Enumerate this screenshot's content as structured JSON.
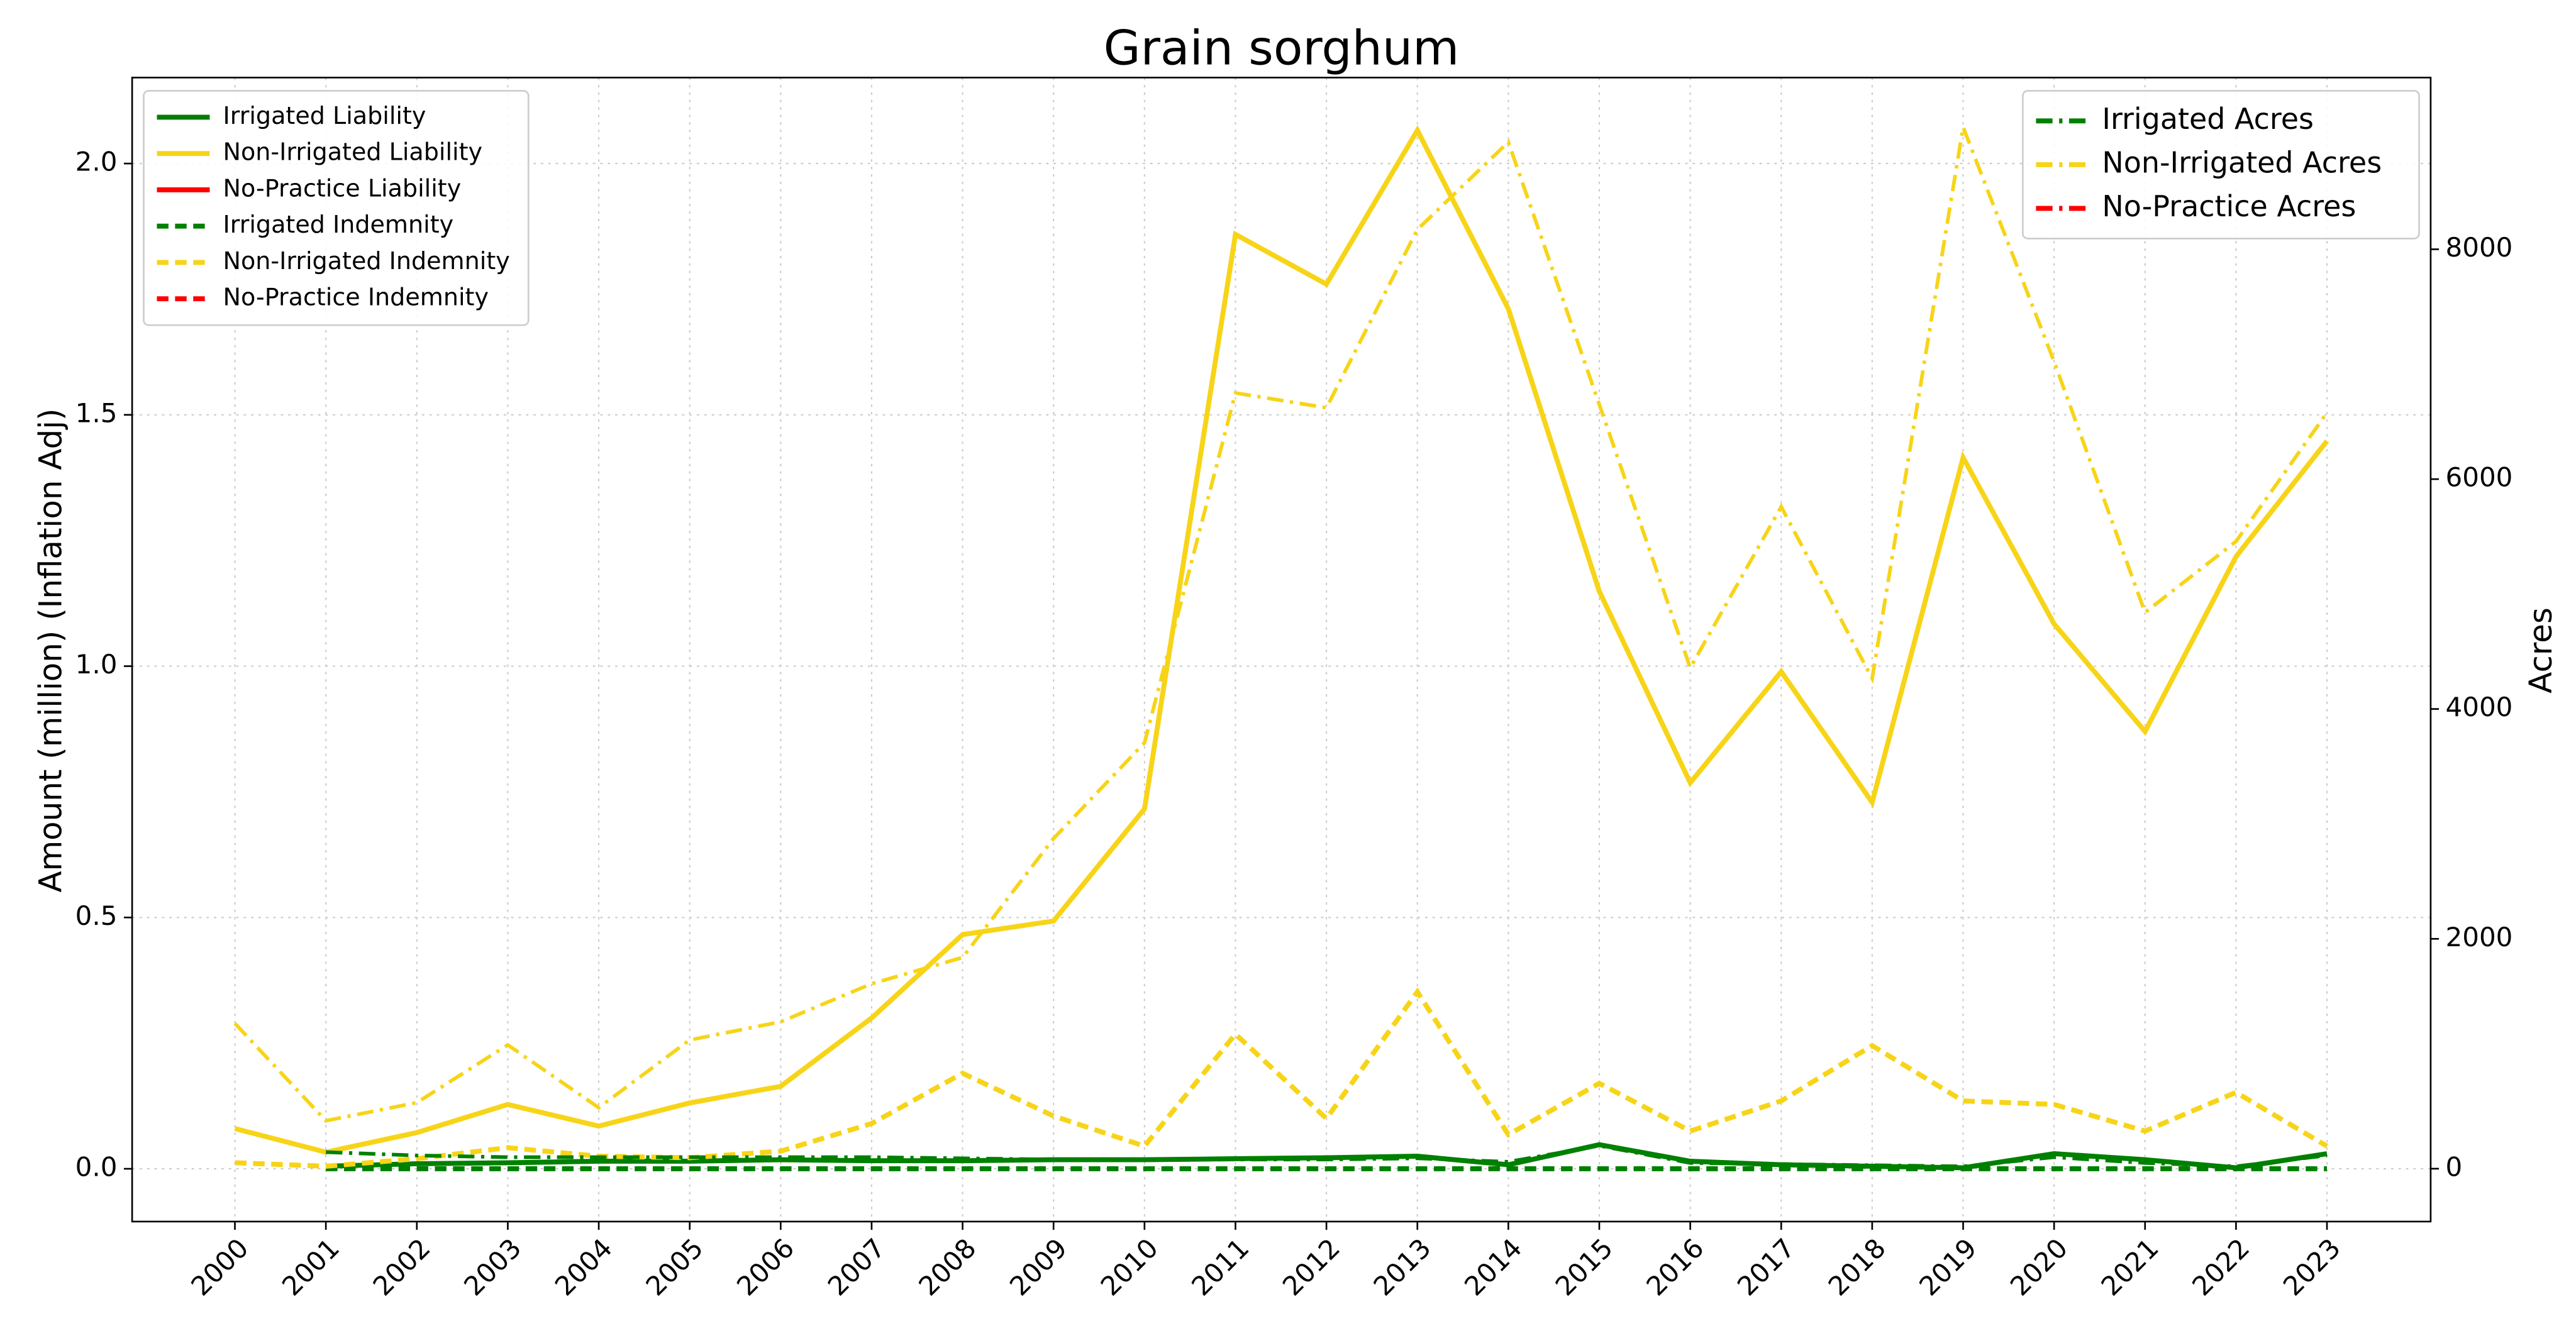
{
  "chart_data": {
    "type": "line",
    "title": "Grain sorghum",
    "ylabel": "Amount (million) (Inflation Adj)",
    "y2label": "Acres",
    "categories": [
      "2000",
      "2001",
      "2002",
      "2003",
      "2004",
      "2005",
      "2006",
      "2007",
      "2008",
      "2009",
      "2010",
      "2011",
      "2012",
      "2013",
      "2014",
      "2015",
      "2016",
      "2017",
      "2018",
      "2019",
      "2020",
      "2021",
      "2022",
      "2023"
    ],
    "ylim": [
      -0.105,
      2.171
    ],
    "yticks": [
      {
        "value": 0,
        "label": "0.0"
      },
      0.5,
      {
        "value": 1,
        "label": "1.0"
      },
      1.5,
      {
        "value": 2,
        "label": "2.0"
      }
    ],
    "y2lim": [
      -460,
      9494
    ],
    "y2ticks": [
      0,
      2000,
      4000,
      6000,
      8000
    ],
    "grid": true,
    "legend_loc": "upper left",
    "legend2_loc": "upper right",
    "series": [
      {
        "name": "Irrigated Liability",
        "color": "#008000",
        "style": "solid",
        "values": [
          null,
          0.005,
          0.01,
          0.012,
          0.015,
          0.015,
          0.018,
          0.016,
          0.016,
          0.018,
          0.018,
          0.02,
          0.022,
          0.025,
          0.008,
          0.048,
          0.015,
          0.008,
          0.005,
          0.002,
          0.03,
          0.018,
          0.002,
          0.03
        ]
      },
      {
        "name": "Non-Irrigated Liability",
        "color": "#f7d417",
        "style": "solid",
        "values": [
          0.08,
          0.033,
          0.072,
          0.128,
          0.085,
          0.131,
          0.164,
          0.3,
          0.466,
          0.493,
          0.716,
          1.859,
          1.76,
          2.066,
          1.711,
          1.149,
          0.768,
          0.989,
          0.729,
          1.415,
          1.084,
          0.87,
          1.218,
          1.448
        ]
      },
      {
        "name": "No-Practice Liability",
        "color": "#ff0000",
        "style": "solid",
        "values": [
          null,
          null,
          null,
          null,
          null,
          null,
          null,
          null,
          null,
          null,
          null,
          null,
          null,
          null,
          null,
          null,
          null,
          null,
          null,
          null,
          null,
          null,
          null,
          null
        ]
      },
      {
        "name": "Irrigated Indemnity",
        "color": "#008000",
        "style": "dashed",
        "values": [
          null,
          0,
          0,
          0,
          0,
          0,
          0,
          0,
          0,
          0,
          0,
          0,
          0,
          0,
          0,
          0,
          0,
          0,
          0,
          0,
          0,
          0,
          0,
          0
        ]
      },
      {
        "name": "Non-Irrigated Indemnity",
        "color": "#f7d417",
        "style": "dashed",
        "values": [
          0.012,
          0.005,
          0.02,
          0.042,
          0.025,
          0.022,
          0.035,
          0.09,
          0.19,
          0.105,
          0.045,
          0.268,
          0.1,
          0.352,
          0.068,
          0.17,
          0.075,
          0.135,
          0.245,
          0.135,
          0.128,
          0.075,
          0.152,
          0.045
        ]
      },
      {
        "name": "No-Practice Indemnity",
        "color": "#ff0000",
        "style": "dashed",
        "values": [
          null,
          null,
          null,
          null,
          null,
          null,
          null,
          null,
          null,
          null,
          null,
          null,
          null,
          null,
          null,
          null,
          null,
          null,
          null,
          null,
          null,
          null,
          null,
          null
        ]
      },
      {
        "name": "Irrigated Acres",
        "color": "#008000",
        "style": "dashdot",
        "axis": "y2",
        "values": [
          null,
          144,
          115,
          100,
          100,
          100,
          100,
          100,
          90,
          80,
          80,
          80,
          80,
          90,
          60,
          200,
          50,
          40,
          30,
          20,
          100,
          50,
          20,
          115
        ]
      },
      {
        "name": "Non-Irrigated Acres",
        "color": "#f7d417",
        "style": "dashdot",
        "axis": "y2",
        "values": [
          1264,
          417,
          575,
          1077,
          531,
          1120,
          1278,
          1609,
          1838,
          2873,
          3706,
          6750,
          6621,
          8172,
          8933,
          6650,
          4358,
          5760,
          4266,
          9063,
          7023,
          4840,
          5458,
          6578
        ]
      },
      {
        "name": "No-Practice Acres",
        "color": "#ff0000",
        "style": "dashdot",
        "axis": "y2",
        "values": [
          null,
          null,
          null,
          null,
          null,
          null,
          null,
          null,
          null,
          null,
          null,
          null,
          null,
          null,
          null,
          null,
          null,
          null,
          null,
          null,
          null,
          null,
          null,
          null
        ]
      }
    ]
  }
}
